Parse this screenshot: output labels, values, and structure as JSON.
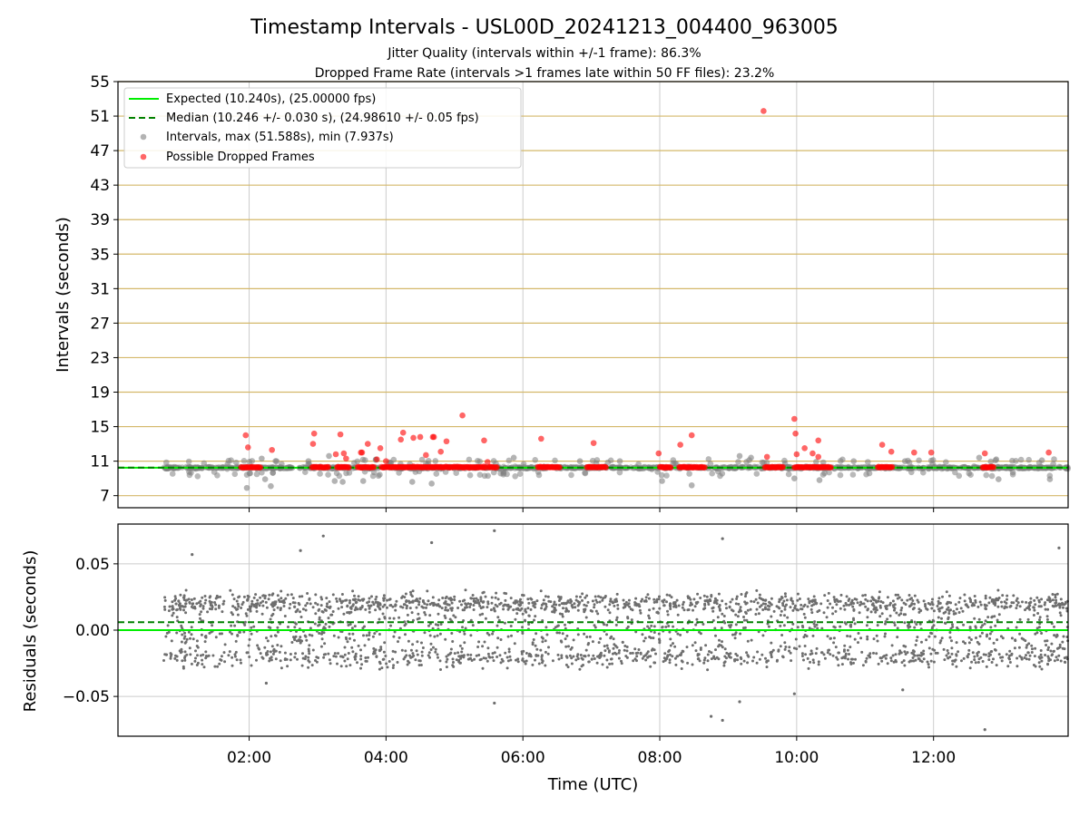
{
  "title": "Timestamp Intervals - USL00D_20241213_004400_963005",
  "subtitle_1": "Jitter Quality (intervals within +/-1 frame): 86.3%",
  "subtitle_2": "Dropped Frame Rate (intervals >1 frames late within 50 FF files): 23.2%",
  "colors": {
    "expected_line": "#00ee00",
    "median_line": "#008000",
    "intervals": "#808080",
    "dropped": "#ff0000",
    "hgrid_top": "#d4b86a",
    "grid": "#cccccc"
  },
  "chart_data": [
    {
      "type": "scatter",
      "panel": "top",
      "ylabel": "Intervals (seconds)",
      "xlim": [
        "00:05",
        "13:58"
      ],
      "ylim": [
        5.6,
        55
      ],
      "yticks": [
        "7",
        "11",
        "15",
        "19",
        "23",
        "27",
        "31",
        "35",
        "39",
        "43",
        "47",
        "51",
        "55"
      ],
      "grid": "horizontal lines at y ticks, vertical lines at x ticks",
      "legend_position": "top-left",
      "legend": [
        "Expected (10.240s), (25.00000 fps)",
        "Median (10.246 +/- 0.030 s), (24.98610 +/- 0.05 fps)",
        "Intervals, max (51.588s), min (7.937s)",
        "Possible Dropped Frames"
      ],
      "expected_value": 10.24,
      "median_value": 10.246,
      "series": [
        {
          "name": "Intervals, max (51.588s), min (7.937s)",
          "x_start": "00:45",
          "x_end": "13:58",
          "typical_value": 10.24,
          "outliers": [
            {
              "x": "01:58",
              "y": 7.9
            },
            {
              "x": "02:14",
              "y": 8.9
            },
            {
              "x": "02:19",
              "y": 8.1
            },
            {
              "x": "03:15",
              "y": 8.7
            },
            {
              "x": "03:22",
              "y": 8.6
            },
            {
              "x": "03:40",
              "y": 8.7
            },
            {
              "x": "04:23",
              "y": 8.6
            },
            {
              "x": "04:40",
              "y": 8.4
            },
            {
              "x": "08:02",
              "y": 8.7
            },
            {
              "x": "08:28",
              "y": 8.2
            },
            {
              "x": "09:58",
              "y": 9.0
            },
            {
              "x": "10:20",
              "y": 8.8
            },
            {
              "x": "12:57",
              "y": 8.9
            },
            {
              "x": "13:42",
              "y": 8.9
            },
            {
              "x": "02:11",
              "y": 11.3
            },
            {
              "x": "02:24",
              "y": 11.0
            },
            {
              "x": "02:52",
              "y": 11.0
            },
            {
              "x": "03:10",
              "y": 11.6
            },
            {
              "x": "05:52",
              "y": 11.4
            },
            {
              "x": "06:50",
              "y": 11.0
            },
            {
              "x": "07:25",
              "y": 11.0
            },
            {
              "x": "09:10",
              "y": 11.6
            },
            {
              "x": "09:20",
              "y": 11.4
            },
            {
              "x": "10:50",
              "y": 11.0
            },
            {
              "x": "11:35",
              "y": 11.0
            },
            {
              "x": "12:40",
              "y": 11.4
            },
            {
              "x": "12:55",
              "y": 11.2
            },
            {
              "x": "13:35",
              "y": 11.1
            }
          ]
        },
        {
          "name": "Possible Dropped Frames",
          "points": [
            {
              "x": "01:57",
              "y": 14.0
            },
            {
              "x": "01:59",
              "y": 12.6
            },
            {
              "x": "02:20",
              "y": 12.3
            },
            {
              "x": "02:56",
              "y": 13.0
            },
            {
              "x": "02:57",
              "y": 14.2
            },
            {
              "x": "03:16",
              "y": 11.8
            },
            {
              "x": "03:20",
              "y": 14.1
            },
            {
              "x": "03:23",
              "y": 11.9
            },
            {
              "x": "03:25",
              "y": 11.3
            },
            {
              "x": "03:38",
              "y": 12.0
            },
            {
              "x": "03:39",
              "y": 12.0
            },
            {
              "x": "03:44",
              "y": 13.0
            },
            {
              "x": "03:52",
              "y": 11.2
            },
            {
              "x": "03:55",
              "y": 12.5
            },
            {
              "x": "04:00",
              "y": 11.0
            },
            {
              "x": "04:13",
              "y": 13.5
            },
            {
              "x": "04:15",
              "y": 14.3
            },
            {
              "x": "04:24",
              "y": 13.7
            },
            {
              "x": "04:30",
              "y": 13.8
            },
            {
              "x": "04:35",
              "y": 11.7
            },
            {
              "x": "04:41",
              "y": 13.8
            },
            {
              "x": "04:42",
              "y": 13.8
            },
            {
              "x": "04:48",
              "y": 12.1
            },
            {
              "x": "04:53",
              "y": 13.3
            },
            {
              "x": "05:07",
              "y": 16.3
            },
            {
              "x": "05:26",
              "y": 13.4
            },
            {
              "x": "05:29",
              "y": 10.9
            },
            {
              "x": "06:16",
              "y": 13.6
            },
            {
              "x": "07:02",
              "y": 13.1
            },
            {
              "x": "07:59",
              "y": 11.9
            },
            {
              "x": "08:18",
              "y": 12.9
            },
            {
              "x": "08:28",
              "y": 14.0
            },
            {
              "x": "09:31",
              "y": 51.588
            },
            {
              "x": "09:34",
              "y": 11.5
            },
            {
              "x": "09:58",
              "y": 15.9
            },
            {
              "x": "09:59",
              "y": 14.2
            },
            {
              "x": "10:00",
              "y": 11.8
            },
            {
              "x": "10:07",
              "y": 12.5
            },
            {
              "x": "10:14",
              "y": 11.9
            },
            {
              "x": "10:19",
              "y": 13.4
            },
            {
              "x": "10:19",
              "y": 11.5
            },
            {
              "x": "11:15",
              "y": 12.9
            },
            {
              "x": "11:23",
              "y": 12.1
            },
            {
              "x": "11:43",
              "y": 12.0
            },
            {
              "x": "11:58",
              "y": 12.0
            },
            {
              "x": "12:45",
              "y": 11.9
            },
            {
              "x": "13:41",
              "y": 12.0
            }
          ],
          "dense_runs_at_y": 10.3,
          "dense_runs": [
            [
              "01:53",
              "02:10"
            ],
            [
              "02:55",
              "03:10"
            ],
            [
              "03:17",
              "03:28"
            ],
            [
              "03:35",
              "03:50"
            ],
            [
              "03:56",
              "05:28"
            ],
            [
              "05:30",
              "05:38"
            ],
            [
              "06:13",
              "06:33"
            ],
            [
              "06:56",
              "07:13"
            ],
            [
              "08:00",
              "08:10"
            ],
            [
              "08:17",
              "08:40"
            ],
            [
              "09:32",
              "09:48"
            ],
            [
              "09:58",
              "10:30"
            ],
            [
              "11:11",
              "11:24"
            ],
            [
              "12:43",
              "12:53"
            ]
          ]
        }
      ]
    },
    {
      "type": "scatter",
      "panel": "bottom",
      "xlabel": "Time (UTC)",
      "ylabel": "Residuals (seconds)",
      "xlim": [
        "00:05",
        "13:58"
      ],
      "ylim": [
        -0.08,
        0.08
      ],
      "xticks": [
        "02:00",
        "04:00",
        "06:00",
        "08:00",
        "10:00",
        "12:00"
      ],
      "yticks": [
        "−0.05",
        "0.00",
        "0.05"
      ],
      "grid": true,
      "expected_residual": 0.0,
      "median_residual": 0.006,
      "series": [
        {
          "name": "Residuals",
          "x_start": "00:45",
          "x_end": "13:58",
          "typical_range": [
            -0.035,
            0.04
          ],
          "outliers": [
            {
              "x": "01:10",
              "y": 0.057
            },
            {
              "x": "02:15",
              "y": -0.04
            },
            {
              "x": "02:45",
              "y": 0.06
            },
            {
              "x": "03:05",
              "y": 0.071
            },
            {
              "x": "04:40",
              "y": 0.066
            },
            {
              "x": "05:35",
              "y": 0.075
            },
            {
              "x": "05:35",
              "y": -0.055
            },
            {
              "x": "08:45",
              "y": -0.065
            },
            {
              "x": "08:55",
              "y": -0.068
            },
            {
              "x": "08:55",
              "y": 0.069
            },
            {
              "x": "09:10",
              "y": -0.054
            },
            {
              "x": "09:58",
              "y": -0.048
            },
            {
              "x": "11:33",
              "y": -0.045
            },
            {
              "x": "12:45",
              "y": -0.075
            },
            {
              "x": "13:50",
              "y": 0.062
            }
          ]
        }
      ]
    }
  ]
}
